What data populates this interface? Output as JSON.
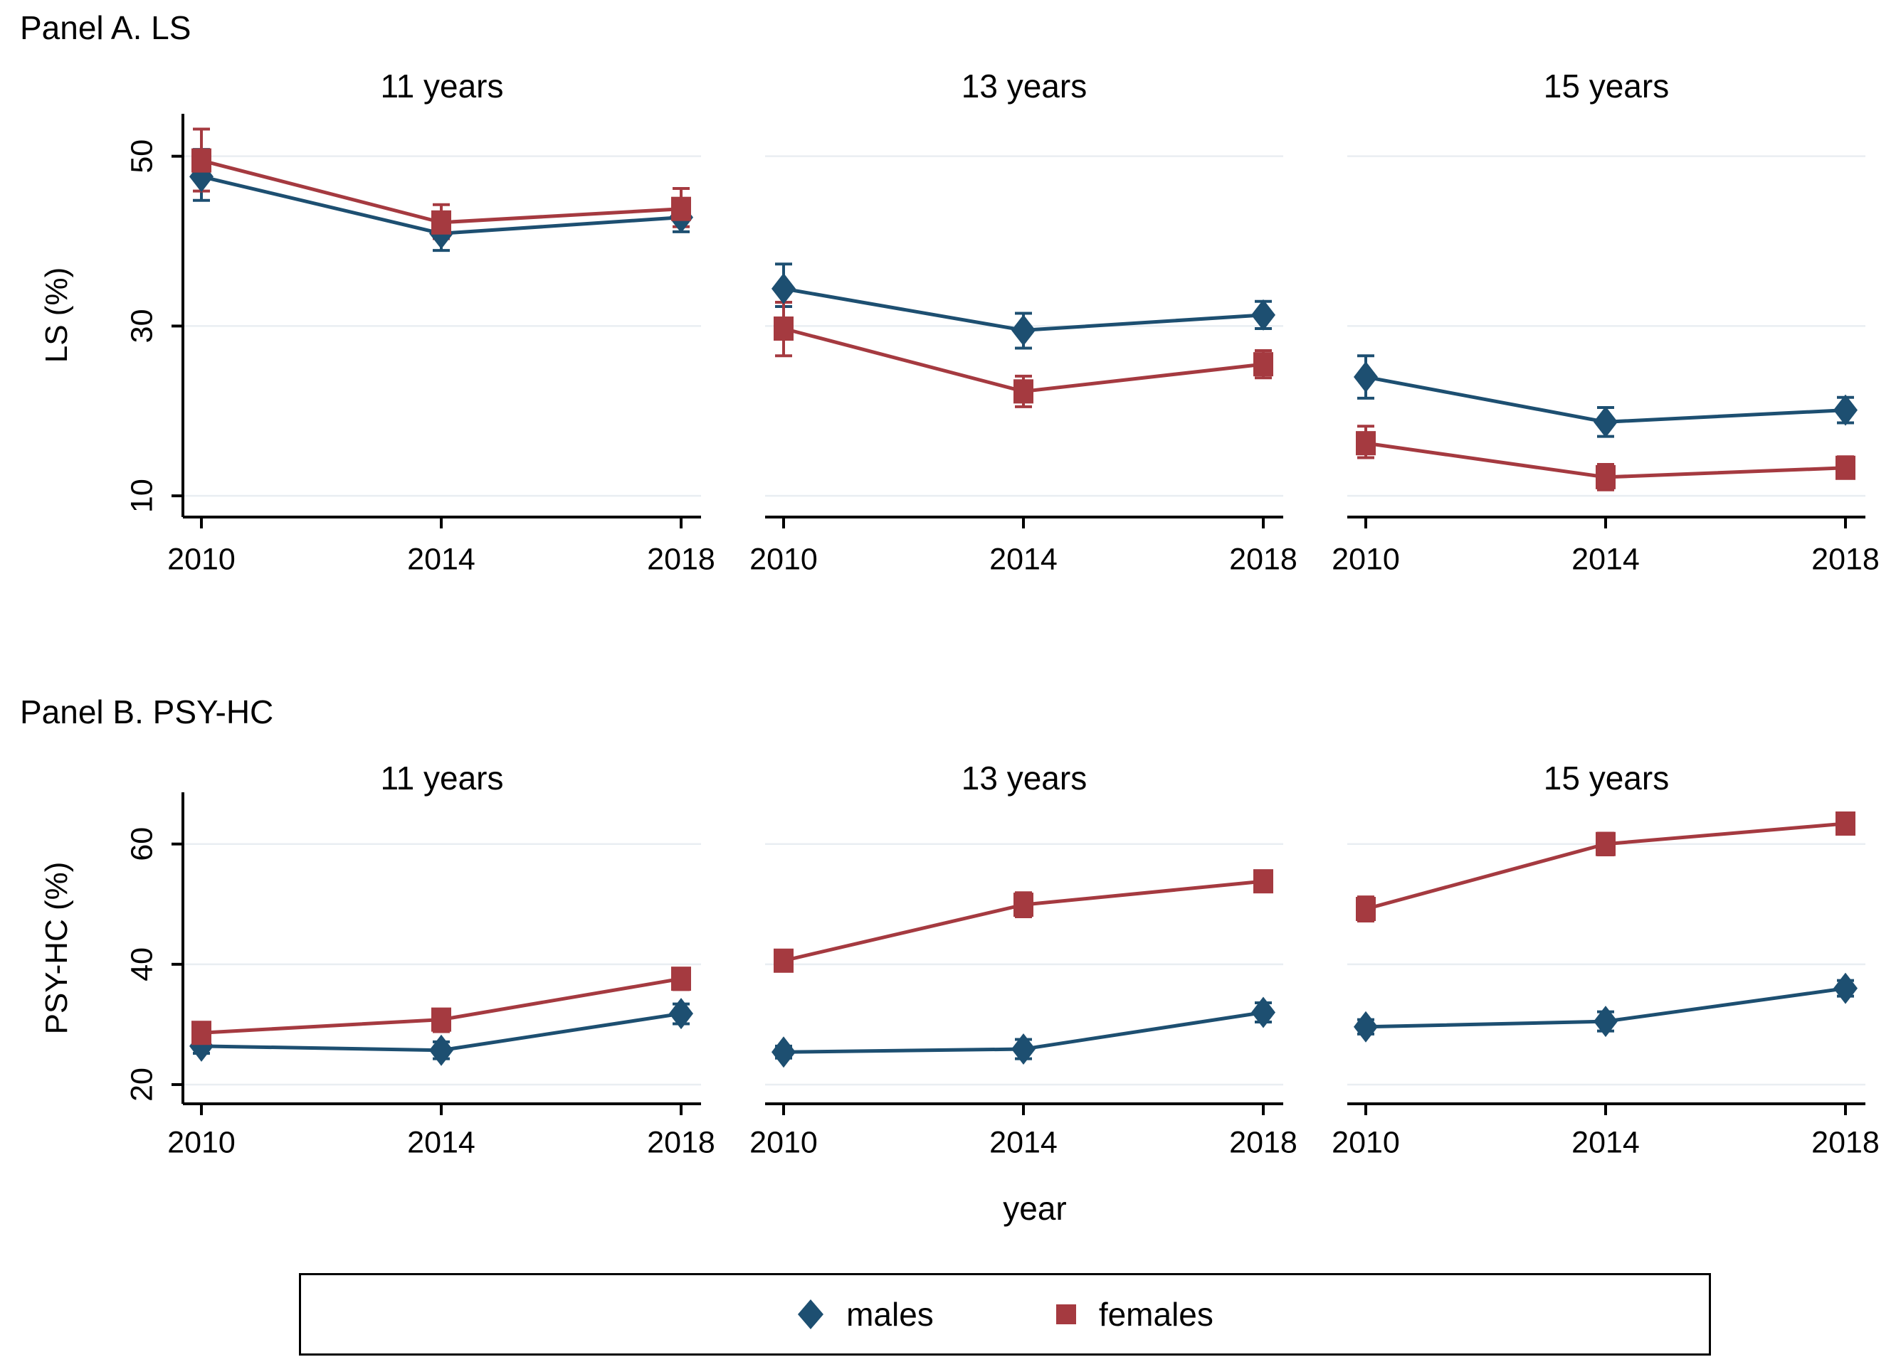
{
  "chart_data": {
    "type": "line",
    "x": [
      2010,
      2014,
      2018
    ],
    "xlabel": "year",
    "grid": true,
    "legend_position": "bottom-center-boxed",
    "colors": {
      "males": "#1d4f71",
      "females": "#a53a40",
      "gridline": "#e9eef2",
      "axis": "#000000"
    },
    "legend": [
      {
        "label": "males",
        "marker": "diamond",
        "color": "#1d4f71"
      },
      {
        "label": "females",
        "marker": "square",
        "color": "#a53a40"
      }
    ],
    "panels": [
      {
        "header": "Panel A. LS",
        "ylabel": "LS (%)",
        "yticks": [
          10,
          30,
          50
        ],
        "ylim": [
          7.5,
          55
        ],
        "subplots": [
          {
            "title": "11 years",
            "males": {
              "y": [
                47.6,
                40.9,
                42.8
              ],
              "lo": [
                44.8,
                38.9,
                41.1
              ],
              "hi": [
                50.8,
                43.2,
                44.5
              ]
            },
            "females": {
              "y": [
                49.5,
                42.2,
                43.8
              ],
              "lo": [
                45.9,
                40.3,
                41.7
              ],
              "hi": [
                53.2,
                44.3,
                46.2
              ]
            }
          },
          {
            "title": "13 years",
            "males": {
              "y": [
                34.4,
                29.5,
                31.3
              ],
              "lo": [
                32.3,
                27.4,
                29.7
              ],
              "hi": [
                37.3,
                31.5,
                32.9
              ]
            },
            "females": {
              "y": [
                29.7,
                22.3,
                25.5
              ],
              "lo": [
                26.5,
                20.5,
                23.9
              ],
              "hi": [
                32.8,
                24.1,
                27.1
              ]
            }
          },
          {
            "title": "15 years",
            "males": {
              "y": [
                24.0,
                18.7,
                20.1
              ],
              "lo": [
                21.5,
                17.0,
                18.6
              ],
              "hi": [
                26.5,
                20.4,
                21.6
              ]
            },
            "females": {
              "y": [
                16.2,
                12.2,
                13.3
              ],
              "lo": [
                14.5,
                10.7,
                12.1
              ],
              "hi": [
                18.2,
                13.7,
                14.6
              ]
            }
          }
        ]
      },
      {
        "header": "Panel B. PSY-HC",
        "ylabel": "PSY-HC (%)",
        "yticks": [
          20,
          40,
          60
        ],
        "ylim": [
          16.8,
          68.6
        ],
        "subplots": [
          {
            "title": "11 years",
            "males": {
              "y": [
                26.4,
                25.7,
                31.8
              ],
              "lo": [
                25.2,
                24.3,
                30.1
              ],
              "hi": [
                27.5,
                27.1,
                33.4
              ]
            },
            "females": {
              "y": [
                28.6,
                30.8,
                37.6
              ],
              "lo": [
                26.9,
                28.8,
                35.8
              ],
              "hi": [
                30.2,
                32.4,
                39.2
              ]
            }
          },
          {
            "title": "13 years",
            "males": {
              "y": [
                25.4,
                25.9,
                32.0
              ],
              "lo": [
                24.4,
                24.3,
                30.4
              ],
              "hi": [
                26.4,
                27.5,
                33.6
              ]
            },
            "females": {
              "y": [
                40.6,
                49.9,
                53.8
              ],
              "lo": [
                39.3,
                47.9,
                52.3
              ],
              "hi": [
                41.9,
                51.9,
                55.3
              ]
            }
          },
          {
            "title": "15 years",
            "males": {
              "y": [
                29.6,
                30.5,
                36.0
              ],
              "lo": [
                28.4,
                28.9,
                34.7
              ],
              "hi": [
                30.8,
                32.1,
                37.3
              ]
            },
            "females": {
              "y": [
                49.2,
                60.0,
                63.4
              ],
              "lo": [
                47.2,
                58.2,
                62.1
              ],
              "hi": [
                51.2,
                61.8,
                64.7
              ]
            }
          }
        ]
      }
    ]
  }
}
